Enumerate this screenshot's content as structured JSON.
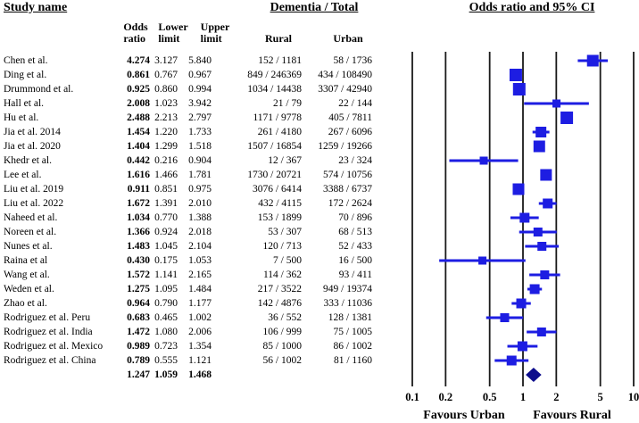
{
  "header": {
    "study_name": "Study name",
    "dementia_total": "Dementia / Total",
    "or_ci_title": "Odds ratio and 95% CI",
    "col_odds_1": "Odds",
    "col_odds_2": "ratio",
    "col_lower_1": "Lower",
    "col_lower_2": "limit",
    "col_upper_1": "Upper",
    "col_upper_2": "limit",
    "col_rural": "Rural",
    "col_urban": "Urban"
  },
  "chart_data": {
    "type": "forest",
    "x_scale": "log",
    "x_ticks": [
      0.1,
      0.2,
      0.5,
      1,
      2,
      5,
      10
    ],
    "footer_left": "Favours Urban",
    "footer_right": "Favours Rural",
    "colors": {
      "marker": "#1d1de2",
      "diamond": "#0d0d8c",
      "axis_line": "#1a1a1a",
      "text": "#000000"
    },
    "studies": [
      {
        "name": "Chen et al.",
        "or": 4.274,
        "lower": 3.127,
        "upper": 5.84,
        "rural": "152 / 1181",
        "urban": "58 / 1736",
        "weight": 13
      },
      {
        "name": "Ding et al.",
        "or": 0.861,
        "lower": 0.767,
        "upper": 0.967,
        "rural": "849 / 246369",
        "urban": "434 / 108490",
        "weight": 14
      },
      {
        "name": "Drummond et al.",
        "or": 0.925,
        "lower": 0.86,
        "upper": 0.994,
        "rural": "1034 / 14438",
        "urban": "3307 / 42940",
        "weight": 14
      },
      {
        "name": "Hall et al.",
        "or": 2.008,
        "lower": 1.023,
        "upper": 3.942,
        "rural": "21 / 79",
        "urban": "22 / 144",
        "weight": 9
      },
      {
        "name": "Hu et al.",
        "or": 2.488,
        "lower": 2.213,
        "upper": 2.797,
        "rural": "1171 / 9778",
        "urban": "405 / 7811",
        "weight": 14
      },
      {
        "name": "Jia et al. 2014",
        "or": 1.454,
        "lower": 1.22,
        "upper": 1.733,
        "rural": "261 / 4180",
        "urban": "267 / 6096",
        "weight": 12
      },
      {
        "name": "Jia et al. 2020",
        "or": 1.404,
        "lower": 1.299,
        "upper": 1.518,
        "rural": "1507 / 16854",
        "urban": "1259 / 19266",
        "weight": 13
      },
      {
        "name": "Khedr et al.",
        "or": 0.442,
        "lower": 0.216,
        "upper": 0.904,
        "rural": "12 / 367",
        "urban": "23 / 324",
        "weight": 9
      },
      {
        "name": "Lee et al.",
        "or": 1.616,
        "lower": 1.466,
        "upper": 1.781,
        "rural": "1730 / 20721",
        "urban": "574 / 10756",
        "weight": 13
      },
      {
        "name": "Liu et al. 2019",
        "or": 0.911,
        "lower": 0.851,
        "upper": 0.975,
        "rural": "3076 / 6414",
        "urban": "3388 / 6737",
        "weight": 13
      },
      {
        "name": "Liu et al. 2022",
        "or": 1.672,
        "lower": 1.391,
        "upper": 2.01,
        "rural": "432 / 4115",
        "urban": "172 / 2624",
        "weight": 11
      },
      {
        "name": "Naheed et al.",
        "or": 1.034,
        "lower": 0.77,
        "upper": 1.388,
        "rural": "153 / 1899",
        "urban": "70 / 896",
        "weight": 11
      },
      {
        "name": "Noreen et al.",
        "or": 1.366,
        "lower": 0.924,
        "upper": 2.018,
        "rural": "53 / 307",
        "urban": "68 / 513",
        "weight": 10
      },
      {
        "name": "Nunes et al.",
        "or": 1.483,
        "lower": 1.045,
        "upper": 2.104,
        "rural": "120 / 713",
        "urban": "52 / 433",
        "weight": 10
      },
      {
        "name": "Raina et al",
        "or": 0.43,
        "lower": 0.175,
        "upper": 1.053,
        "rural": "7 / 500",
        "urban": "16 / 500",
        "weight": 9
      },
      {
        "name": "Wang et al.",
        "or": 1.572,
        "lower": 1.141,
        "upper": 2.165,
        "rural": "114 / 362",
        "urban": "93 / 411",
        "weight": 10
      },
      {
        "name": "Weden et al.",
        "or": 1.275,
        "lower": 1.095,
        "upper": 1.484,
        "rural": "217 / 3522",
        "urban": "949 / 19374",
        "weight": 11
      },
      {
        "name": "Zhao et al.",
        "or": 0.964,
        "lower": 0.79,
        "upper": 1.177,
        "rural": "142 / 4876",
        "urban": "333 / 11036",
        "weight": 11
      },
      {
        "name": "Rodriguez et al. Peru",
        "or": 0.683,
        "lower": 0.465,
        "upper": 1.002,
        "rural": "36 / 552",
        "urban": "128 / 1381",
        "weight": 10
      },
      {
        "name": "Rodriguez et al. India",
        "or": 1.472,
        "lower": 1.08,
        "upper": 2.006,
        "rural": "106 / 999",
        "urban": "75 / 1005",
        "weight": 10
      },
      {
        "name": "Rodriguez et al. Mexico",
        "or": 0.989,
        "lower": 0.723,
        "upper": 1.354,
        "rural": "85 / 1000",
        "urban": "86 / 1002",
        "weight": 11
      },
      {
        "name": "Rodriguez et al. China",
        "or": 0.789,
        "lower": 0.555,
        "upper": 1.121,
        "rural": "56 / 1002",
        "urban": "81 / 1160",
        "weight": 11
      }
    ],
    "total": {
      "or": 1.247,
      "lower": 1.059,
      "upper": 1.468
    }
  }
}
